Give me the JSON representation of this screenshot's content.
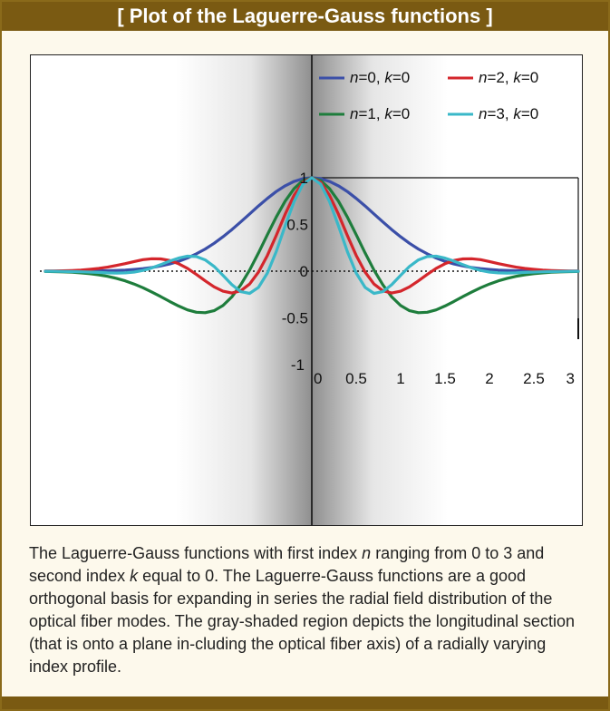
{
  "header": {
    "title": "[ Plot of the Laguerre-Gauss functions ]"
  },
  "caption": {
    "p1": "The Laguerre-Gauss functions with first index ",
    "n": "n",
    "p2": " ranging from 0 to 3 and second index ",
    "k": "k",
    "p3": " equal to 0. The Laguerre-Gauss functions are a good orthogonal basis for expanding in series the radial field distribution of the optical fiber modes. The gray-shaded region depicts the longitudinal section (that is onto a plane in-cluding the optical fiber axis) of a radially varying index profile."
  },
  "chart_data": {
    "type": "line",
    "title": "",
    "xlabel": "",
    "ylabel": "",
    "xlim": [
      0,
      3
    ],
    "ylim": [
      -1,
      1
    ],
    "mirrored_about_x0": true,
    "x_ticks": [
      "0",
      "0.5",
      "1",
      "1.5",
      "2",
      "2.5",
      "3"
    ],
    "y_ticks": [
      "1",
      "0.5",
      "0",
      "-0.5",
      "-1"
    ],
    "legend_position": "top-right",
    "x": [
      0,
      0.1,
      0.2,
      0.3,
      0.4,
      0.5,
      0.6,
      0.7,
      0.8,
      0.9,
      1.0,
      1.1,
      1.2,
      1.3,
      1.4,
      1.5,
      1.6,
      1.7,
      1.8,
      1.9,
      2.0,
      2.1,
      2.2,
      2.3,
      2.4,
      2.5,
      2.6,
      2.7,
      2.8,
      2.9,
      3.0
    ],
    "series": [
      {
        "n": "n",
        "eq1": "=0, ",
        "k": "k",
        "eq2": "=0",
        "color": "#3b4fa8",
        "values": [
          1.0,
          0.99,
          0.96,
          0.914,
          0.852,
          0.779,
          0.698,
          0.613,
          0.527,
          0.445,
          0.368,
          0.298,
          0.237,
          0.185,
          0.141,
          0.105,
          0.077,
          0.056,
          0.039,
          0.027,
          0.018,
          0.012,
          0.008,
          0.005,
          0.003,
          0.002,
          0.001,
          0.001,
          0.0,
          0.0,
          0.0
        ]
      },
      {
        "n": "n",
        "eq1": "=1, ",
        "k": "k",
        "eq2": "=0",
        "color": "#1e7d3c",
        "values": [
          1.0,
          0.97,
          0.883,
          0.75,
          0.58,
          0.39,
          0.195,
          0.012,
          -0.147,
          -0.276,
          -0.368,
          -0.423,
          -0.445,
          -0.44,
          -0.415,
          -0.373,
          -0.324,
          -0.273,
          -0.224,
          -0.178,
          -0.138,
          -0.104,
          -0.077,
          -0.055,
          -0.039,
          -0.027,
          -0.018,
          -0.012,
          -0.008,
          -0.005,
          -0.003
        ]
      },
      {
        "n": "n",
        "eq1": "=2, ",
        "k": "k",
        "eq2": "=0",
        "color": "#d4262c",
        "values": [
          1.0,
          0.951,
          0.812,
          0.61,
          0.383,
          0.168,
          -0.01,
          -0.138,
          -0.211,
          -0.234,
          -0.215,
          -0.168,
          -0.104,
          -0.035,
          0.03,
          0.08,
          0.115,
          0.131,
          0.133,
          0.123,
          0.103,
          0.081,
          0.061,
          0.043,
          0.029,
          0.019,
          0.012,
          0.007,
          0.004,
          0.002,
          0.001
        ]
      },
      {
        "n": "n",
        "eq1": "=3, ",
        "k": "k",
        "eq2": "=0",
        "color": "#3ab8c8",
        "values": [
          1.0,
          0.931,
          0.744,
          0.484,
          0.21,
          -0.02,
          -0.174,
          -0.238,
          -0.219,
          -0.145,
          -0.045,
          0.05,
          0.12,
          0.156,
          0.16,
          0.14,
          0.108,
          0.07,
          0.035,
          0.008,
          -0.01,
          -0.018,
          -0.02,
          -0.018,
          -0.014,
          -0.01,
          -0.007,
          -0.005,
          -0.003,
          -0.002,
          -0.001
        ]
      }
    ]
  }
}
